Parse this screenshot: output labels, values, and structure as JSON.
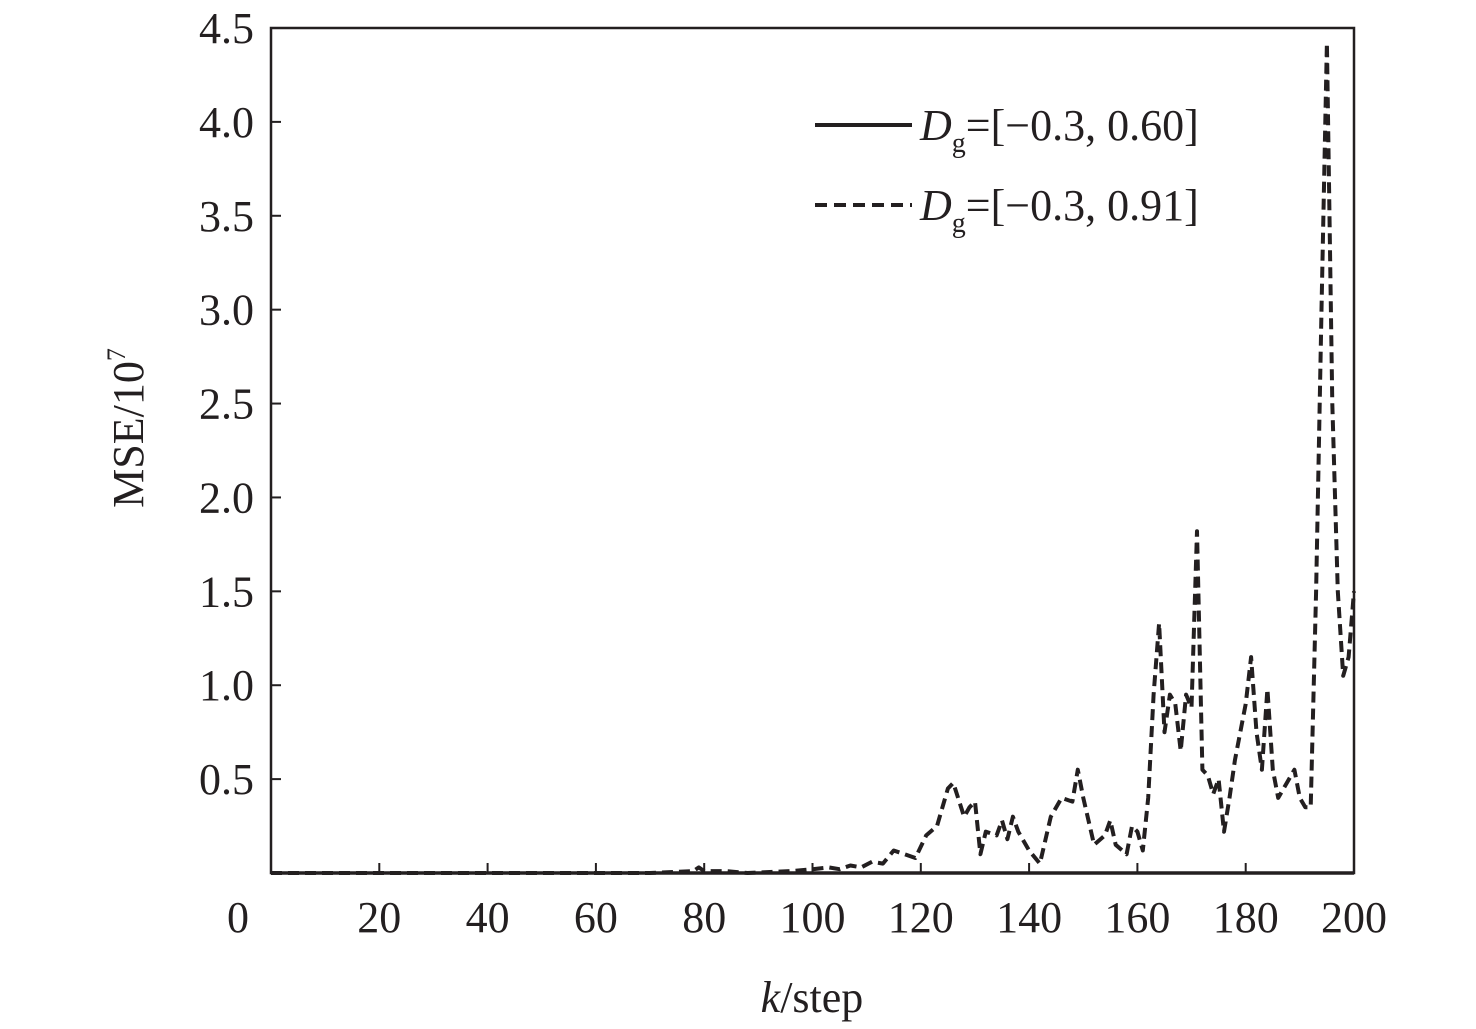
{
  "chart_data": {
    "type": "line",
    "xlabel": {
      "italic": "k",
      "rest": "/step"
    },
    "ylabel": {
      "base": "MSE/10",
      "sup": "7"
    },
    "xlim": [
      0,
      200
    ],
    "ylim": [
      0,
      4.5
    ],
    "x_origin_label": "0",
    "xticks": [
      20,
      40,
      60,
      80,
      100,
      120,
      140,
      160,
      180,
      200
    ],
    "yticks": [
      0.5,
      1.0,
      1.5,
      2.0,
      2.5,
      3.0,
      3.5,
      4.0,
      4.5
    ],
    "ytick_labels": [
      "0.5",
      "1.0",
      "1.5",
      "2.0",
      "2.5",
      "3.0",
      "3.5",
      "4.0",
      "4.5"
    ],
    "grid": false,
    "legend_position": "top-right",
    "series": [
      {
        "name": {
          "sym": "D",
          "sub": "g",
          "rest": "=[−0.3, 0.60]"
        },
        "style": "solid",
        "color": "#231f20",
        "x": [
          0,
          200
        ],
        "y": [
          0,
          0
        ]
      },
      {
        "name": {
          "sym": "D",
          "sub": "g",
          "rest": "=[−0.3, 0.91]"
        },
        "style": "dashed",
        "color": "#231f20",
        "x": [
          0,
          70,
          78,
          79,
          80,
          84,
          88,
          96,
          100,
          103,
          105,
          107,
          109,
          111,
          113,
          115,
          117,
          119,
          121,
          123,
          125,
          126,
          128,
          129,
          130,
          131,
          132,
          134,
          135,
          136,
          137,
          138,
          140,
          142,
          144,
          146,
          148,
          149,
          150,
          152,
          154,
          155,
          156,
          158,
          159,
          160,
          161,
          162,
          163,
          164,
          165,
          166,
          167,
          168,
          169,
          170,
          171,
          172,
          173,
          174,
          175,
          176,
          177,
          178,
          180,
          181,
          182,
          183,
          184,
          185,
          186,
          188,
          189,
          190,
          191,
          192,
          193,
          194,
          195,
          196,
          197,
          198,
          199,
          200
        ],
        "y": [
          0,
          0,
          0.01,
          0.03,
          0.01,
          0.01,
          0.0,
          0.01,
          0.02,
          0.03,
          0.02,
          0.04,
          0.03,
          0.06,
          0.05,
          0.12,
          0.1,
          0.08,
          0.2,
          0.25,
          0.45,
          0.48,
          0.3,
          0.35,
          0.38,
          0.1,
          0.22,
          0.2,
          0.28,
          0.18,
          0.3,
          0.22,
          0.12,
          0.05,
          0.3,
          0.4,
          0.38,
          0.55,
          0.4,
          0.15,
          0.2,
          0.28,
          0.15,
          0.1,
          0.25,
          0.22,
          0.12,
          0.4,
          0.95,
          1.33,
          0.75,
          0.95,
          0.9,
          0.65,
          0.95,
          0.88,
          1.82,
          0.55,
          0.52,
          0.42,
          0.5,
          0.22,
          0.4,
          0.6,
          0.9,
          1.15,
          0.75,
          0.55,
          0.98,
          0.55,
          0.4,
          0.5,
          0.55,
          0.4,
          0.35,
          0.35,
          1.5,
          3.0,
          4.42,
          2.5,
          1.5,
          1.05,
          1.15,
          1.5
        ]
      }
    ]
  }
}
